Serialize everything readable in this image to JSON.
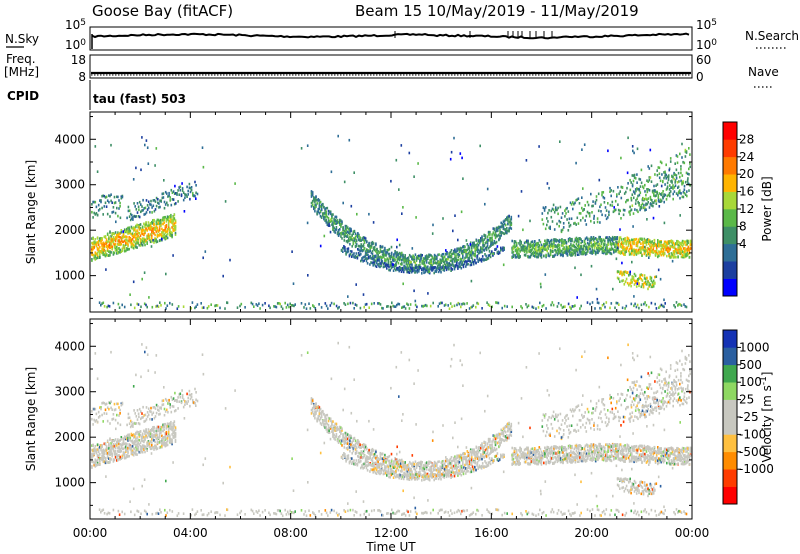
{
  "header": {
    "station": "Goose Bay (fitACF)",
    "beam_dates": "Beam 15  10/May/2019 - 11/May/2019"
  },
  "strip1": {
    "left_label": "N.Sky",
    "right_label": "N.Search",
    "left_ticks": [
      "10^5",
      "10^0"
    ],
    "right_ticks": [
      "10^5",
      "10^0"
    ]
  },
  "strip2": {
    "left_label_1": "Freq.",
    "left_label_2": "[MHz]",
    "right_label": "Nave",
    "left_ticks": [
      "18",
      "8"
    ],
    "right_ticks": [
      "60",
      "0"
    ]
  },
  "cpid": {
    "label": "CPID",
    "mode": "tau (fast) 503"
  },
  "colors": {
    "power": [
      "#0000ff",
      "#1c3fa0",
      "#2e6e96",
      "#3e8f66",
      "#5ab848",
      "#a8d838",
      "#ffb400",
      "#ff7a00",
      "#ff3c00",
      "#ff0000"
    ],
    "velocity": [
      "#ff0000",
      "#ff3c00",
      "#ff8c00",
      "#ffc040",
      "#c8c8c0",
      "#c8c8c0",
      "#8ed862",
      "#3fa84e",
      "#2a5fa0",
      "#1432b4"
    ]
  },
  "chart_data": [
    {
      "type": "heatmap",
      "quantity": "Power",
      "xlabel": "",
      "ylabel": "Slant Range [km]",
      "colorbar_label": "Power [dB]",
      "colorbar_ticks": [
        "28",
        "24",
        "20",
        "16",
        "12",
        "8",
        "4"
      ],
      "xlim": [
        0,
        24
      ],
      "ylim": [
        200,
        4600
      ],
      "y_ticks": [
        "1000",
        "2000",
        "3000",
        "4000"
      ],
      "y_tick_values": [
        1000,
        2000,
        3000,
        4000
      ]
    },
    {
      "type": "heatmap",
      "quantity": "Velocity",
      "xlabel": "Time UT",
      "ylabel": "Slant Range [km]",
      "colorbar_label": "Velocity [m s^-1]",
      "colorbar_ticks": [
        "1000",
        "500",
        "100",
        "25",
        "-25",
        "-100",
        "-500",
        "-1000"
      ],
      "xlim": [
        0,
        24
      ],
      "ylim": [
        200,
        4600
      ],
      "x_ticks": [
        "00:00",
        "04:00",
        "08:00",
        "12:00",
        "16:00",
        "20:00",
        "00:00"
      ],
      "x_tick_values": [
        0,
        4,
        8,
        12,
        16,
        20,
        24
      ],
      "y_ticks": [
        "1000",
        "2000",
        "3000",
        "4000"
      ],
      "y_tick_values": [
        1000,
        2000,
        3000,
        4000
      ]
    }
  ]
}
